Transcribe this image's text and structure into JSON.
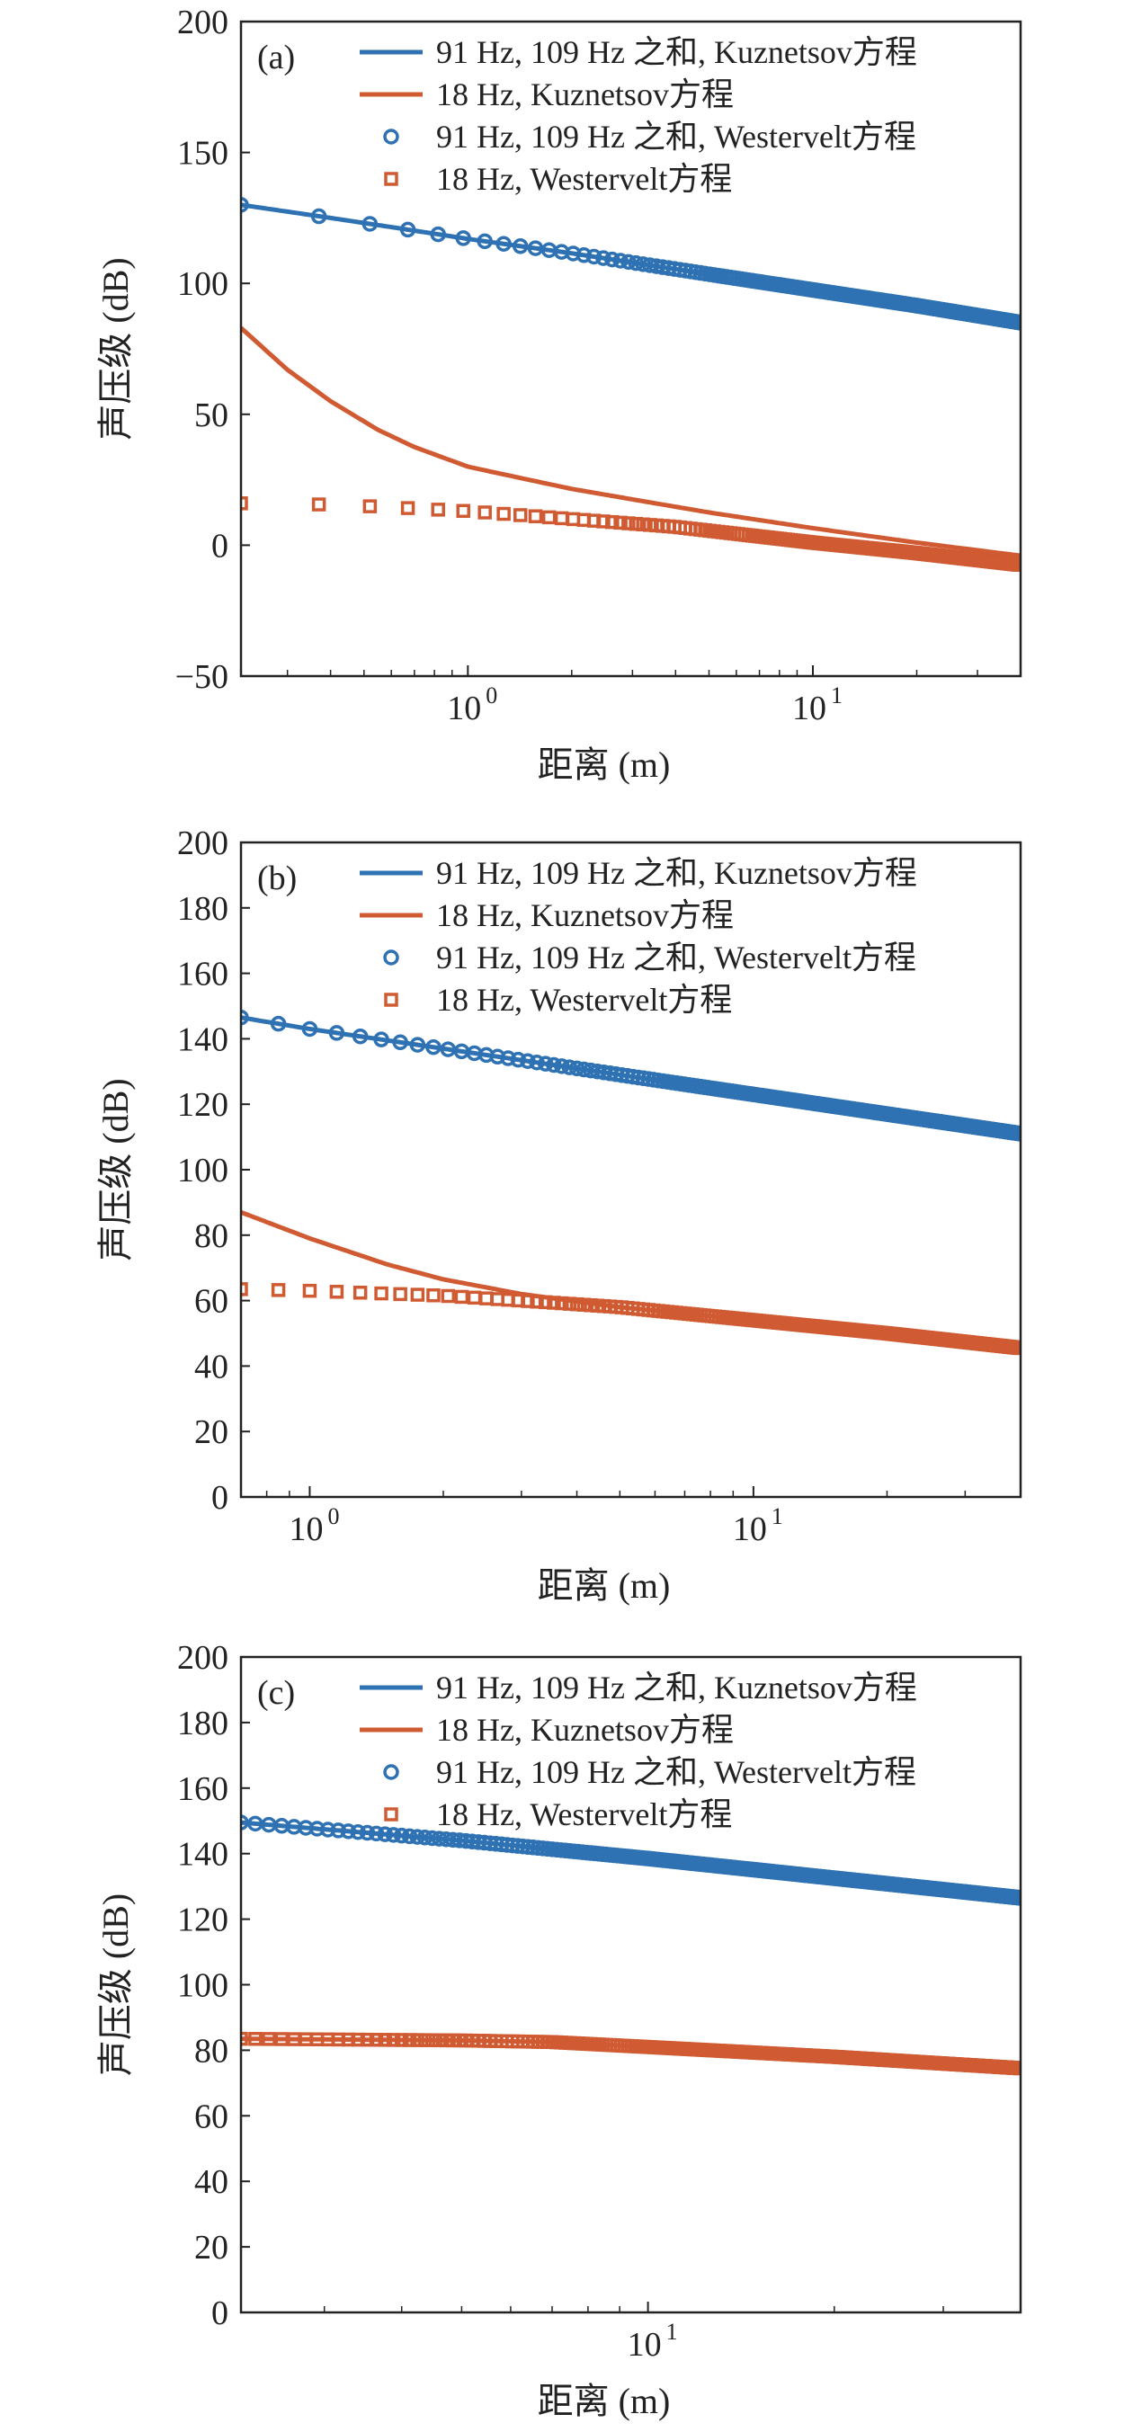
{
  "colors": {
    "blue": "#2f72b3",
    "orange": "#d05b33",
    "axis": "#222222"
  },
  "chart_data": [
    {
      "type": "line",
      "panel_label": "(a)",
      "xscale": "log",
      "xlim": [
        0.22,
        40
      ],
      "ylim": [
        -50,
        200
      ],
      "yticks": [
        "−50",
        "0",
        "50",
        "100",
        "150",
        "200"
      ],
      "ytick_values": [
        -50,
        0,
        50,
        100,
        150,
        200
      ],
      "xticks": [
        1,
        10
      ],
      "xtick_labels": [
        {
          "base": "10",
          "exp": "0"
        },
        {
          "base": "10",
          "exp": "1"
        }
      ],
      "xlabel": "距离 (m)",
      "ylabel": "声压级 (dB)",
      "legend_position": "top-right",
      "legend": [
        "91 Hz, 109 Hz 之和, Kuznetsov方程",
        "18 Hz, Kuznetsov方程",
        "91 Hz, 109 Hz 之和, Westervelt方程",
        "18 Hz, Westervelt方程"
      ],
      "series": [
        {
          "name": "91 Hz, 109 Hz 之和, Kuznetsov方程",
          "style": "line",
          "color": "blue",
          "x": [
            0.22,
            0.4,
            0.6,
            1,
            2,
            5,
            10,
            20,
            40
          ],
          "y": [
            130,
            125,
            121.5,
            117,
            111.5,
            103.5,
            97.5,
            91.5,
            85
          ]
        },
        {
          "name": "18 Hz, Kuznetsov方程",
          "style": "line",
          "color": "orange",
          "x": [
            0.22,
            0.3,
            0.4,
            0.55,
            0.7,
            1,
            1.5,
            2,
            3,
            5,
            10,
            20,
            40
          ],
          "y": [
            83,
            67,
            55,
            44,
            37.5,
            30,
            25,
            21.5,
            17.5,
            12.5,
            6.5,
            1,
            -4
          ]
        },
        {
          "name": "91 Hz, 109 Hz 之和, Westervelt方程",
          "style": "circle",
          "color": "blue",
          "x_start": 0.22,
          "x_end": 40,
          "step": 0.15,
          "y_anchor_x": [
            0.22,
            0.4,
            0.6,
            1,
            2,
            5,
            10,
            20,
            40
          ],
          "y_anchor_y": [
            130,
            125,
            121.5,
            117,
            111.5,
            103.5,
            97.5,
            91.5,
            85
          ]
        },
        {
          "name": "18 Hz, Westervelt方程",
          "style": "square",
          "color": "orange",
          "x_start": 0.22,
          "x_end": 40,
          "step": 0.15,
          "y_anchor_x": [
            0.22,
            0.4,
            0.6,
            1,
            2,
            4,
            10,
            20,
            40
          ],
          "y_anchor_y": [
            16,
            15.5,
            14.5,
            13,
            10,
            7,
            1,
            -3,
            -7.5
          ]
        }
      ]
    },
    {
      "type": "line",
      "panel_label": "(b)",
      "xscale": "log",
      "xlim": [
        0.7,
        40
      ],
      "ylim": [
        0,
        200
      ],
      "yticks": [
        "0",
        "20",
        "40",
        "60",
        "80",
        "100",
        "120",
        "140",
        "160",
        "180",
        "200"
      ],
      "ytick_values": [
        0,
        20,
        40,
        60,
        80,
        100,
        120,
        140,
        160,
        180,
        200
      ],
      "xticks": [
        1,
        10
      ],
      "xtick_labels": [
        {
          "base": "10",
          "exp": "0"
        },
        {
          "base": "10",
          "exp": "1"
        }
      ],
      "xlabel": "距离 (m)",
      "ylabel": "声压级 (dB)",
      "legend_position": "top-right",
      "legend": [
        "91 Hz, 109 Hz 之和, Kuznetsov方程",
        "18 Hz, Kuznetsov方程",
        "91 Hz, 109 Hz 之和, Westervelt方程",
        "18 Hz, Westervelt方程"
      ],
      "series": [
        {
          "name": "91 Hz, 109 Hz 之和, Kuznetsov方程",
          "style": "line",
          "color": "blue",
          "x": [
            0.7,
            1,
            2,
            5,
            10,
            20,
            40
          ],
          "y": [
            146.5,
            143,
            137,
            129,
            123,
            117,
            111
          ]
        },
        {
          "name": "18 Hz, Kuznetsov方程",
          "style": "line",
          "color": "orange",
          "x": [
            0.7,
            1,
            1.5,
            2,
            3,
            5,
            10,
            20,
            40
          ],
          "y": [
            87,
            79,
            71,
            66.5,
            62,
            58,
            54,
            50,
            45.5
          ]
        },
        {
          "name": "91 Hz, 109 Hz 之和, Westervelt方程",
          "style": "circle",
          "color": "blue",
          "x_start": 0.7,
          "x_end": 40,
          "step": 0.15,
          "y_anchor_x": [
            0.7,
            1,
            2,
            5,
            10,
            20,
            40
          ],
          "y_anchor_y": [
            146.5,
            143,
            137,
            129,
            123,
            117,
            111
          ]
        },
        {
          "name": "18 Hz, Westervelt方程",
          "style": "square",
          "color": "orange",
          "x_start": 0.7,
          "x_end": 40,
          "step": 0.15,
          "y_anchor_x": [
            0.7,
            1,
            2,
            3,
            5,
            10,
            20,
            40
          ],
          "y_anchor_y": [
            63.5,
            63,
            61.5,
            60,
            58,
            54,
            50,
            45.5
          ]
        }
      ]
    },
    {
      "type": "line",
      "panel_label": "(c)",
      "xscale": "log",
      "xlim": [
        2.2,
        40
      ],
      "ylim": [
        0,
        200
      ],
      "yticks": [
        "0",
        "20",
        "40",
        "60",
        "80",
        "100",
        "120",
        "140",
        "160",
        "180",
        "200"
      ],
      "ytick_values": [
        0,
        20,
        40,
        60,
        80,
        100,
        120,
        140,
        160,
        180,
        200
      ],
      "xticks": [
        10
      ],
      "xtick_labels": [
        {
          "base": "10",
          "exp": "1"
        }
      ],
      "xlabel": "距离 (m)",
      "ylabel": "声压级 (dB)",
      "legend_position": "top-right",
      "legend": [
        "91 Hz, 109 Hz 之和, Kuznetsov方程",
        "18 Hz, Kuznetsov方程",
        "91 Hz, 109 Hz 之和, Westervelt方程",
        "18 Hz, Westervelt方程"
      ],
      "series": [
        {
          "name": "91 Hz, 109 Hz 之和, Kuznetsov方程",
          "style": "line",
          "color": "blue",
          "x": [
            2.2,
            5,
            10,
            20,
            40
          ],
          "y": [
            149.5,
            144,
            138.5,
            132.5,
            126.5
          ]
        },
        {
          "name": "18 Hz, Kuznetsov方程",
          "style": "line",
          "color": "orange",
          "x": [
            2.2,
            5,
            7,
            10,
            20,
            40
          ],
          "y": [
            83.5,
            83,
            82.5,
            81,
            78,
            74.5
          ]
        },
        {
          "name": "91 Hz, 109 Hz 之和, Westervelt方程",
          "style": "circle",
          "color": "blue",
          "x_start": 2.2,
          "x_end": 40,
          "step": 0.12,
          "y_anchor_x": [
            2.2,
            5,
            10,
            20,
            40
          ],
          "y_anchor_y": [
            149.5,
            144,
            138.5,
            132.5,
            126.5
          ]
        },
        {
          "name": "18 Hz, Westervelt方程",
          "style": "square",
          "color": "orange",
          "x_start": 2.2,
          "x_end": 40,
          "step": 0.12,
          "y_anchor_x": [
            2.2,
            5,
            7,
            10,
            20,
            40
          ],
          "y_anchor_y": [
            83.5,
            83,
            82.5,
            81,
            78,
            74.5
          ]
        }
      ]
    }
  ]
}
